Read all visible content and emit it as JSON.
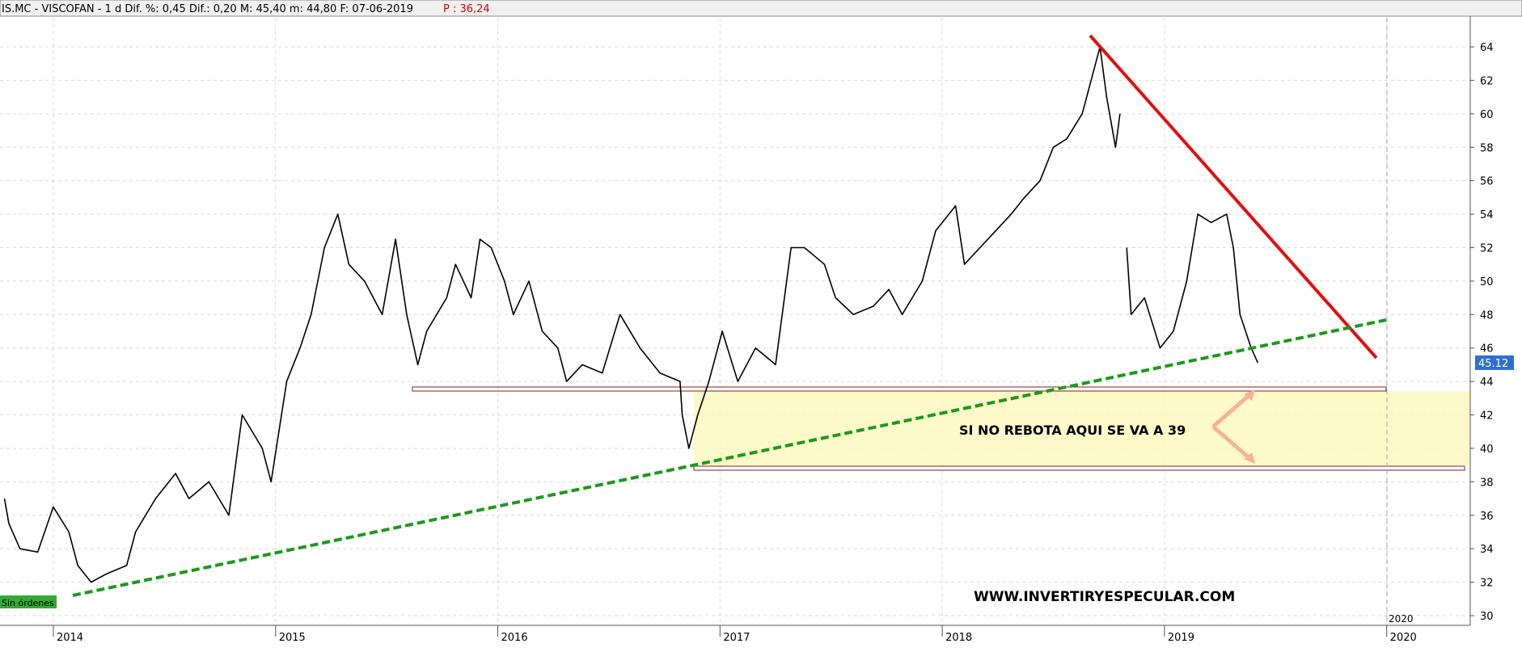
{
  "header": {
    "symbol_info": "IS.MC - VISCOFAN -  1 d Dif. %: 0,45 Dif.: 0,20 M: 45,40 m: 44,80 F: 07-06-2019",
    "p_info": "P : 36,24"
  },
  "status_label": "Sin órdenes",
  "annotation": "SI NO REBOTA AQUI SE VA A 39",
  "watermark": "WWW.INVERTIRYESPECULAR.COM",
  "cursor_label": "2020",
  "chart_data": {
    "type": "line",
    "x": [
      2013.78,
      2013.8,
      2013.85,
      2013.93,
      2014.0,
      2014.07,
      2014.11,
      2014.17,
      2014.24,
      2014.33,
      2014.37,
      2014.46,
      2014.55,
      2014.61,
      2014.7,
      2014.79,
      2014.85,
      2014.94,
      2014.98,
      2015.05,
      2015.11,
      2015.16,
      2015.22,
      2015.28,
      2015.33,
      2015.4,
      2015.48,
      2015.54,
      2015.59,
      2015.64,
      2015.68,
      2015.77,
      2015.81,
      2015.88,
      2015.92,
      2015.97,
      2016.03,
      2016.07,
      2016.14,
      2016.2,
      2016.27,
      2016.31,
      2016.38,
      2016.47,
      2016.55,
      2016.64,
      2016.73,
      2016.82,
      2016.83,
      2016.86,
      2016.9,
      2016.95,
      2017.01,
      2017.08,
      2017.16,
      2017.25,
      2017.32,
      2017.38,
      2017.47,
      2017.52,
      2017.6,
      2017.69,
      2017.76,
      2017.82,
      2017.91,
      2017.97,
      2018.06,
      2018.1,
      2018.17,
      2018.24,
      2018.31,
      2018.37,
      2018.44,
      2018.5,
      2018.56,
      2018.63,
      2018.67,
      2018.71,
      2018.74,
      2018.78,
      2018.8,
      2018.82,
      2018.83,
      2018.85,
      2018.91,
      2018.98,
      2019.04,
      2019.1,
      2019.15,
      2019.21,
      2019.28,
      2019.31,
      2019.34,
      2019.39,
      2019.42
    ],
    "series": [
      {
        "name": "VISCOFAN",
        "color": "#000000",
        "values": [
          37,
          35.5,
          34,
          33.8,
          36.5,
          35,
          33,
          32,
          32.5,
          33,
          35,
          37,
          38.5,
          37,
          38,
          36,
          42,
          40,
          38,
          44,
          46,
          48,
          52,
          54,
          51,
          50,
          48,
          52.5,
          48,
          45,
          47,
          49,
          51,
          49,
          52.5,
          52,
          50,
          48,
          50,
          47,
          46,
          44,
          45,
          44.5,
          48,
          46,
          44.5,
          44,
          42,
          40,
          42,
          44,
          47,
          44,
          46,
          45,
          52,
          52,
          51,
          49,
          48,
          48.5,
          49.5,
          48,
          50,
          53,
          54.5,
          51,
          52,
          53,
          54,
          55,
          56,
          58,
          58.5,
          60,
          62,
          64,
          61,
          58,
          60,
          null,
          52,
          48,
          49,
          46,
          47,
          50,
          54,
          53.5,
          54,
          52,
          48,
          46,
          45.12
        ]
      }
    ],
    "last_price": 45.12,
    "xlim": [
      2013.76,
      2020.376
    ],
    "xticks": [
      2014,
      2015,
      2016,
      2017,
      2018,
      2019,
      2020
    ],
    "ylim": [
      29.42,
      65.74
    ],
    "yticks": [
      30,
      32,
      34,
      36,
      38,
      40,
      42,
      44,
      46,
      48,
      50,
      52,
      54,
      56,
      58,
      60,
      62,
      64
    ],
    "grid": true
  }
}
